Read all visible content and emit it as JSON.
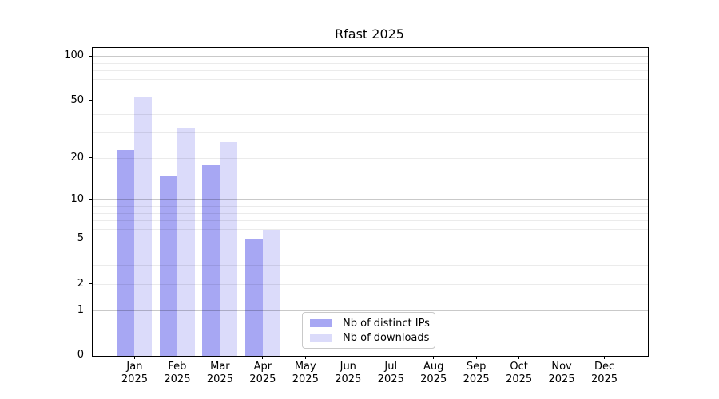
{
  "title": "Rfast 2025",
  "colors": {
    "background": "#ffffff",
    "axis": "#000000",
    "bar_distinct_ips": "#a7a7f3",
    "bar_downloads": "#dbdbfa",
    "legend_border": "#c9c9c9"
  },
  "legend": {
    "labels": [
      "Nb of distinct IPs",
      "Nb of downloads"
    ]
  },
  "chart_data": {
    "type": "bar",
    "title": "Rfast 2025",
    "categories": [
      "Jan 2025",
      "Feb 2025",
      "Mar 2025",
      "Apr 2025",
      "May 2025",
      "Jun 2025",
      "Jul 2025",
      "Aug 2025",
      "Sep 2025",
      "Oct 2025",
      "Nov 2025",
      "Dec 2025"
    ],
    "series": [
      {
        "name": "Nb of distinct IPs",
        "color": "#a7a7f3",
        "values": [
          23,
          15,
          18,
          5,
          null,
          null,
          null,
          null,
          null,
          null,
          null,
          null
        ]
      },
      {
        "name": "Nb of downloads",
        "color": "#dbdbfa",
        "values": [
          53,
          33,
          26,
          6,
          null,
          null,
          null,
          null,
          null,
          null,
          null,
          null
        ]
      }
    ],
    "xlabel": "",
    "ylabel": "",
    "y_scale": "log10(1+x)",
    "ylim": [
      0,
      110
    ],
    "y_ticks": [
      0,
      1,
      2,
      5,
      10,
      20,
      50,
      100
    ],
    "y_major_gridlines": [
      1,
      10,
      100
    ],
    "y_minor_gridlines": [
      2,
      3,
      4,
      5,
      6,
      7,
      8,
      9,
      20,
      30,
      40,
      50,
      60,
      70,
      80,
      90
    ],
    "grid": true,
    "legend_position": "bottom-center"
  }
}
